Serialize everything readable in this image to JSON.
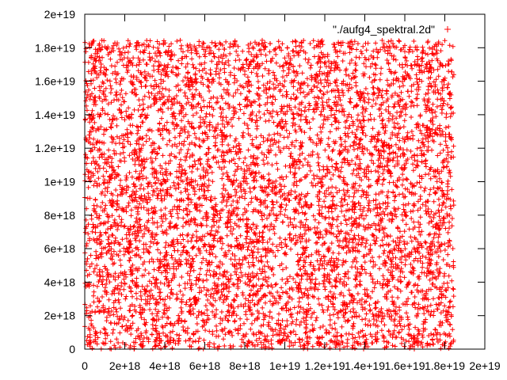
{
  "chart_data": {
    "type": "scatter",
    "title": "",
    "xlabel": "",
    "ylabel": "",
    "xlim": [
      0,
      2e+19
    ],
    "ylim": [
      0,
      2e+19
    ],
    "grid": false,
    "legend_position": "top-right",
    "x_ticks": [
      0,
      2e+18,
      4e+18,
      6e+18,
      8e+18,
      1e+19,
      1.2e+19,
      1.4e+19,
      1.6e+19,
      1.8e+19,
      2e+19
    ],
    "x_tick_labels": [
      "0",
      "2e+18",
      "4e+18",
      "6e+18",
      "8e+18",
      "1e+19",
      "1.2e+19",
      "1.4e+19",
      "1.6e+19",
      "1.8e+19",
      "2e+19"
    ],
    "y_ticks": [
      0,
      2e+18,
      4e+18,
      6e+18,
      8e+18,
      1e+19,
      1.2e+19,
      1.4e+19,
      1.6e+19,
      1.8e+19,
      2e+19
    ],
    "y_tick_labels": [
      "0",
      "2e+18",
      "4e+18",
      "6e+18",
      "8e+18",
      "1e+19",
      "1.2e+19",
      "1.4e+19",
      "1.6e+19",
      "1.8e+19",
      "2e+19"
    ],
    "series": [
      {
        "name": "\"./aufg4_spektral.2d\"",
        "marker": "plus",
        "color": "#ff0000",
        "x_range": [
          0,
          1.845e+19
        ],
        "y_range": [
          0,
          1.845e+19
        ],
        "distribution": "uniform dense scatter filling the full range of both axes",
        "point_count": 9000
      }
    ]
  }
}
